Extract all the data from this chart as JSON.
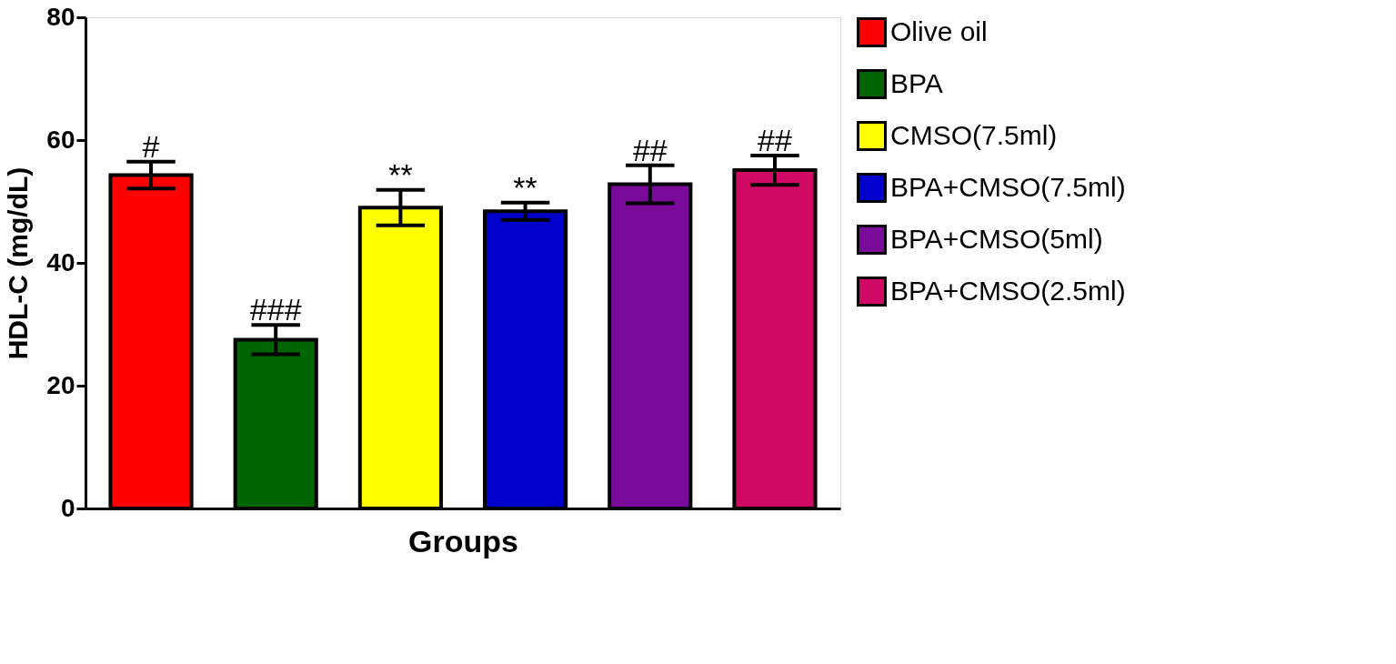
{
  "chart_data": {
    "type": "bar",
    "xlabel": "Groups",
    "ylabel": "HDL-C (mg/dL)",
    "categories": [
      null,
      null,
      null,
      null,
      null,
      null
    ],
    "series": [
      {
        "name": "Olive oil",
        "color": "#ff0000",
        "values": [
          54.3,
          null,
          null,
          null,
          null,
          null
        ],
        "errors": [
          2.2,
          null,
          null,
          null,
          null,
          null
        ]
      },
      {
        "name": "BPA",
        "color": "#006400",
        "values": [
          null,
          27.5,
          null,
          null,
          null,
          null
        ],
        "errors": [
          null,
          2.4,
          null,
          null,
          null,
          null
        ]
      },
      {
        "name": "CMSO(7.5ml)",
        "color": "#ffff00",
        "values": [
          null,
          null,
          49.0,
          null,
          null,
          null
        ],
        "errors": [
          null,
          null,
          2.9,
          null,
          null,
          null
        ]
      },
      {
        "name": "BPA+CMSO(7.5ml)",
        "color": "#0000cc",
        "values": [
          null,
          null,
          null,
          48.4,
          null,
          null
        ],
        "errors": [
          null,
          null,
          null,
          1.4,
          null,
          null
        ]
      },
      {
        "name": "BPA+CMSO(5ml)",
        "color": "#7a0a9a",
        "values": [
          null,
          null,
          null,
          null,
          52.8,
          null
        ],
        "errors": [
          null,
          null,
          null,
          null,
          3.1,
          null
        ]
      },
      {
        "name": "BPA+CMSO(2.5ml)",
        "color": "#d00a64",
        "values": [
          null,
          null,
          null,
          null,
          null,
          55.1
        ],
        "errors": [
          null,
          null,
          null,
          null,
          null,
          2.4
        ]
      }
    ],
    "annotations": [
      "#",
      "###",
      "**",
      "**",
      "##",
      "##"
    ],
    "ylim": [
      0,
      80
    ],
    "yticks": [
      0,
      20,
      40,
      60,
      80
    ],
    "grid": false,
    "legend": "right"
  }
}
